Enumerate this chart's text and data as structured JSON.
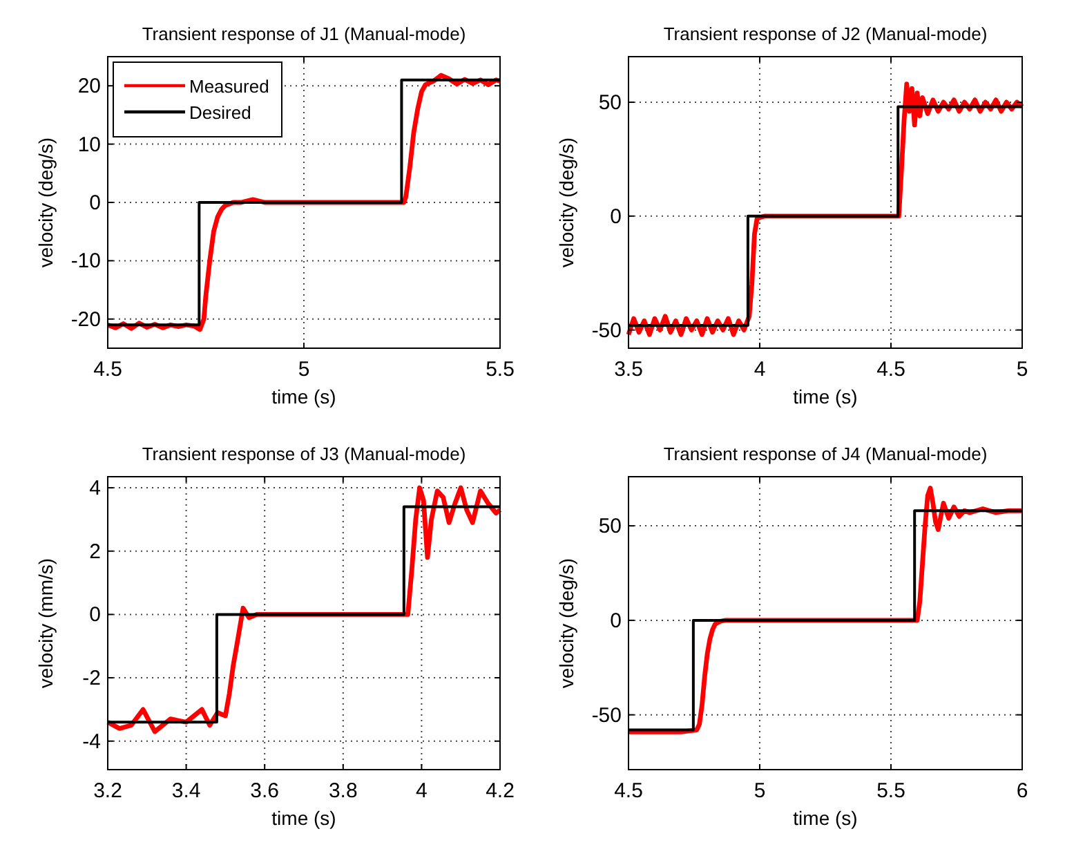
{
  "chart_data": [
    {
      "type": "line",
      "title": "Transient response of J1 (Manual-mode)",
      "xlabel": "time (s)",
      "ylabel": "velocity (deg/s)",
      "xlim": [
        4.5,
        5.5
      ],
      "ylim": [
        -25,
        25
      ],
      "xticks": [
        4.5,
        5,
        5.5
      ],
      "yticks": [
        -20,
        -10,
        0,
        10,
        20
      ],
      "grid": true,
      "legend": "top left",
      "line_style": "solid",
      "marker": "none",
      "series": [
        {
          "name": "Measured",
          "color": "#ff0000",
          "x": [
            4.5,
            4.52,
            4.54,
            4.56,
            4.58,
            4.6,
            4.62,
            4.64,
            4.66,
            4.68,
            4.7,
            4.72,
            4.735,
            4.745,
            4.75,
            4.76,
            4.77,
            4.78,
            4.79,
            4.8,
            4.82,
            4.84,
            4.87,
            4.9,
            5,
            5.1,
            5.2,
            5.255,
            5.26,
            5.27,
            5.28,
            5.29,
            5.3,
            5.31,
            5.33,
            5.35,
            5.37,
            5.39,
            5.41,
            5.43,
            5.45,
            5.47,
            5.49,
            5.5
          ],
          "values": [
            -21,
            -21.5,
            -20.8,
            -21.6,
            -20.7,
            -21.4,
            -20.9,
            -21.5,
            -21,
            -21.3,
            -21,
            -21.2,
            -21.8,
            -20,
            -16,
            -10,
            -5,
            -2.5,
            -1.2,
            -0.5,
            0,
            0,
            0.5,
            0,
            0,
            0,
            0,
            0,
            1,
            6,
            12,
            16,
            19,
            20.2,
            20.8,
            21.8,
            21.2,
            20.3,
            21.1,
            20.4,
            21,
            20.2,
            21,
            20.8
          ]
        },
        {
          "name": "Desired",
          "color": "#000000",
          "x": [
            4.5,
            4.733,
            4.733,
            5.249,
            5.249,
            5.5
          ],
          "values": [
            -21,
            -21,
            0,
            0,
            21,
            21
          ]
        }
      ]
    },
    {
      "type": "line",
      "title": "Transient response of J2 (Manual-mode)",
      "xlabel": "time (s)",
      "ylabel": "velocity (deg/s)",
      "xlim": [
        3.5,
        5
      ],
      "ylim": [
        -58,
        70
      ],
      "xticks": [
        3.5,
        4,
        4.5,
        5
      ],
      "yticks": [
        -50,
        0,
        50
      ],
      "grid": true,
      "line_style": "solid",
      "marker": "none",
      "series": [
        {
          "color": "#ff0000",
          "x": [
            3.5,
            3.52,
            3.54,
            3.56,
            3.58,
            3.6,
            3.62,
            3.64,
            3.66,
            3.68,
            3.7,
            3.72,
            3.74,
            3.76,
            3.78,
            3.8,
            3.82,
            3.84,
            3.86,
            3.88,
            3.9,
            3.92,
            3.94,
            3.96,
            3.97,
            3.98,
            3.99,
            4.02,
            4.05,
            4.1,
            4.3,
            4.5,
            4.53,
            4.54,
            4.55,
            4.56,
            4.57,
            4.58,
            4.59,
            4.6,
            4.61,
            4.62,
            4.64,
            4.66,
            4.68,
            4.7,
            4.72,
            4.74,
            4.76,
            4.78,
            4.8,
            4.82,
            4.84,
            4.86,
            4.88,
            4.9,
            4.92,
            4.94,
            4.96,
            4.98,
            5
          ],
          "values": [
            -52,
            -45,
            -51,
            -46,
            -52,
            -45,
            -50,
            -44,
            -51,
            -46,
            -52,
            -45,
            -50,
            -46,
            -52,
            -45,
            -51,
            -46,
            -50,
            -45,
            -52,
            -46,
            -50,
            -44,
            -30,
            -8,
            -1,
            0,
            0,
            0,
            0,
            0,
            0,
            20,
            42,
            58,
            46,
            56,
            40,
            54,
            44,
            52,
            45,
            51,
            46,
            50,
            47,
            51,
            46,
            50,
            47,
            51,
            46,
            50,
            47,
            51,
            46,
            50,
            47,
            50,
            48
          ]
        },
        {
          "color": "#000000",
          "x": [
            3.5,
            3.955,
            3.955,
            4.527,
            4.527,
            5
          ],
          "values": [
            -48,
            -48,
            0,
            0,
            48,
            48
          ]
        }
      ]
    },
    {
      "type": "line",
      "title": "Transient response of J3 (Manual-mode)",
      "xlabel": "time (s)",
      "ylabel": "velocity (mm/s)",
      "xlim": [
        3.2,
        4.2
      ],
      "ylim": [
        -4.9,
        4.35
      ],
      "xticks": [
        3.2,
        3.4,
        3.6,
        3.8,
        4,
        4.2
      ],
      "yticks": [
        -4,
        -2,
        0,
        2,
        4
      ],
      "grid": true,
      "line_style": "solid",
      "marker": "none",
      "series": [
        {
          "color": "#ff0000",
          "x": [
            3.2,
            3.23,
            3.26,
            3.29,
            3.32,
            3.36,
            3.4,
            3.44,
            3.46,
            3.48,
            3.5,
            3.51,
            3.52,
            3.53,
            3.545,
            3.56,
            3.58,
            3.6,
            3.8,
            3.965,
            3.975,
            3.985,
            3.995,
            4.005,
            4.015,
            4.025,
            4.04,
            4.055,
            4.07,
            4.085,
            4.1,
            4.115,
            4.13,
            4.15,
            4.17,
            4.19,
            4.2
          ],
          "values": [
            -3.4,
            -3.6,
            -3.5,
            -3,
            -3.7,
            -3.3,
            -3.4,
            -3,
            -3.5,
            -3.1,
            -3.2,
            -2.5,
            -1.6,
            -0.9,
            0.2,
            -0.1,
            0,
            0,
            0,
            0,
            1.4,
            3,
            4,
            3.6,
            1.8,
            3,
            3.9,
            3.7,
            2.9,
            3.5,
            4,
            3.3,
            2.9,
            3.9,
            3.5,
            3.2,
            3.3
          ]
        },
        {
          "color": "#000000",
          "x": [
            3.2,
            3.478,
            3.478,
            3.955,
            3.955,
            4.2
          ],
          "values": [
            -3.4,
            -3.4,
            0,
            0,
            3.4,
            3.4
          ]
        }
      ]
    },
    {
      "type": "line",
      "title": "Transient response of J4 (Manual-mode)",
      "xlabel": "time (s)",
      "ylabel": "velocity (deg/s)",
      "xlim": [
        4.5,
        6
      ],
      "ylim": [
        -79,
        76
      ],
      "xticks": [
        4.5,
        5,
        5.5,
        6
      ],
      "yticks": [
        -50,
        0,
        50
      ],
      "grid": true,
      "line_style": "solid",
      "marker": "none",
      "series": [
        {
          "color": "#ff0000",
          "x": [
            4.5,
            4.6,
            4.7,
            4.76,
            4.77,
            4.78,
            4.79,
            4.8,
            4.81,
            4.82,
            4.83,
            4.85,
            4.87,
            4.9,
            5.2,
            5.59,
            5.6,
            5.61,
            5.62,
            5.63,
            5.64,
            5.65,
            5.66,
            5.67,
            5.68,
            5.69,
            5.7,
            5.72,
            5.74,
            5.76,
            5.78,
            5.8,
            5.85,
            5.9,
            5.95,
            6
          ],
          "values": [
            -59,
            -59,
            -59,
            -58,
            -55,
            -45,
            -30,
            -18,
            -10,
            -5,
            -2,
            -0.5,
            0,
            0,
            0,
            0,
            0,
            10,
            30,
            50,
            66,
            70,
            62,
            52,
            48,
            55,
            62,
            54,
            60,
            55,
            58,
            57,
            59,
            57,
            58,
            58
          ]
        },
        {
          "color": "#000000",
          "x": [
            4.5,
            4.747,
            4.747,
            5.59,
            5.59,
            6
          ],
          "values": [
            -58,
            -58,
            0,
            0,
            58,
            58
          ]
        }
      ]
    }
  ]
}
